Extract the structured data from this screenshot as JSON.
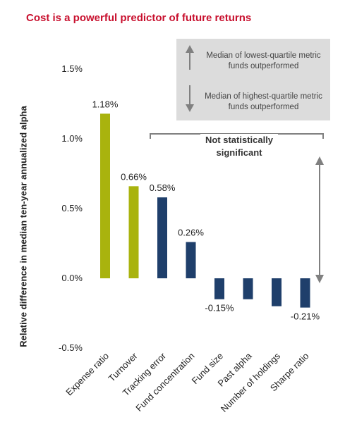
{
  "title": "Cost is a powerful predictor of future returns",
  "legend": {
    "up_text": "Median of lowest-quartile metric funds outperformed",
    "down_text": "Median of highest-quartile metric funds outperformed"
  },
  "annotation": {
    "not_significant": "Not statistically significant"
  },
  "colors": {
    "significant": "#a9b30e",
    "not_significant": "#1f3f6b",
    "title": "#c8102e",
    "legend_bg": "#dcdcdc",
    "arrow": "#808080"
  },
  "chart_data": {
    "type": "bar",
    "title": "Cost is a powerful predictor of future returns",
    "ylabel": "Relative difference in median ten-year annualized alpha",
    "xlabel": "",
    "ylim": [
      -0.5,
      1.5
    ],
    "yticks": [
      "1.5%",
      "1.0%",
      "0.5%",
      "0.0%",
      "-0.5%"
    ],
    "grid": false,
    "categories": [
      "Expense ratio",
      "Turnover",
      "Tracking error",
      "Fund concentration",
      "Fund size",
      "Past alpha",
      "Number of holdings",
      "Sharpe ratio"
    ],
    "values": [
      1.18,
      0.66,
      0.58,
      0.26,
      -0.15,
      -0.15,
      -0.2,
      -0.21
    ],
    "value_labels": [
      "1.18%",
      "0.66%",
      "0.58%",
      "0.26%",
      "-0.15%",
      "",
      "",
      "-0.21%"
    ],
    "significant": [
      true,
      true,
      false,
      false,
      false,
      false,
      false,
      false
    ]
  }
}
